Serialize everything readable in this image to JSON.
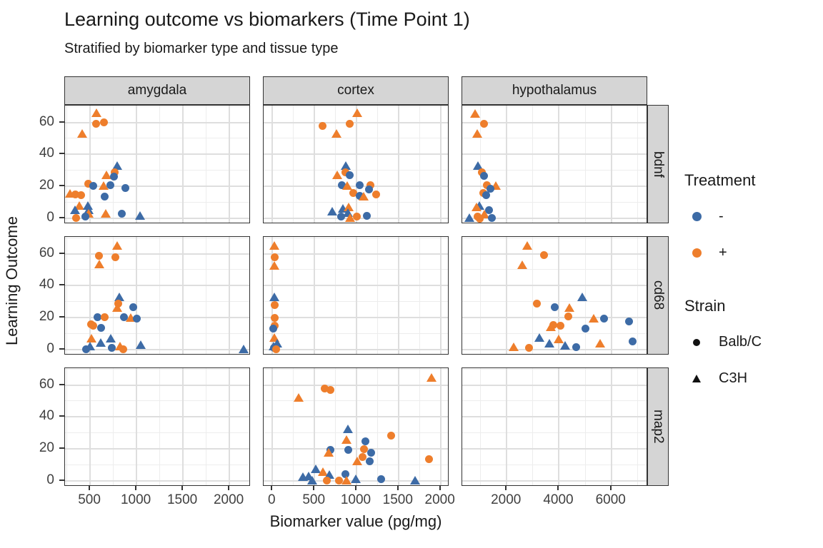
{
  "legend": {
    "treatment": {
      "title": "Treatment",
      "items": [
        {
          "label": "-"
        },
        {
          "label": "+"
        }
      ]
    },
    "strain": {
      "title": "Strain",
      "items": [
        {
          "label": "Balb/C"
        },
        {
          "label": "C3H"
        }
      ]
    }
  },
  "chart_data": {
    "type": "scatter",
    "title": "Learning outcome vs biomarkers (Time Point 1)",
    "subtitle": "Stratified by biomarker type and tissue type",
    "xlabel": "Biomarker value (pg/mg)",
    "ylabel": "Learning Outcome",
    "legend_position": "right",
    "grid": true,
    "style": {
      "treatment_minus_color": "#3D6BA6",
      "treatment_plus_color": "#EE7E2C",
      "strain_key_color": "#111111",
      "strip_bg": "#d5d5d5",
      "panel_border": "#333333",
      "grid_major": "#dedede",
      "grid_minor": "#ededed"
    },
    "facet_rows": [
      {
        "label": "bdnf"
      },
      {
        "label": "cd68"
      },
      {
        "label": "map2"
      }
    ],
    "facet_cols": [
      {
        "label": "amygdala",
        "xlim": [
          230,
          2230
        ],
        "xticks": [
          500,
          1000,
          1500,
          2000
        ]
      },
      {
        "label": "cortex",
        "xlim": [
          -105,
          2105
        ],
        "xticks": [
          0,
          500,
          1000,
          1500,
          2000
        ]
      },
      {
        "label": "hypothalamus",
        "xlim": [
          300,
          7400
        ],
        "xticks": [
          2000,
          4000,
          6000
        ]
      }
    ],
    "ylim": [
      -3.5,
      70.5
    ],
    "yticks": [
      0,
      20,
      40,
      60
    ],
    "point_format": [
      "biomarker_value",
      "learning_outcome",
      "treatment",
      "strain"
    ],
    "points": {
      "bdnf": {
        "amygdala": [
          [
            566,
            66,
            "+",
            "C3H"
          ],
          [
            561,
            59,
            "+",
            "Balb/C"
          ],
          [
            646,
            60,
            "+",
            "Balb/C"
          ],
          [
            414,
            53,
            "+",
            "C3H"
          ],
          [
            788,
            33,
            "-",
            "C3H"
          ],
          [
            766,
            29,
            "+",
            "Balb/C"
          ],
          [
            678,
            27,
            "+",
            "C3H"
          ],
          [
            754,
            26,
            "-",
            "Balb/C"
          ],
          [
            478,
            21.5,
            "+",
            "Balb/C"
          ],
          [
            532,
            20.5,
            "-",
            "Balb/C"
          ],
          [
            642,
            20.5,
            "+",
            "C3H"
          ],
          [
            718,
            21,
            "-",
            "Balb/C"
          ],
          [
            878,
            19,
            "-",
            "Balb/C"
          ],
          [
            280,
            15.5,
            "+",
            "C3H"
          ],
          [
            340,
            15,
            "+",
            "Balb/C"
          ],
          [
            400,
            14.5,
            "+",
            "Balb/C"
          ],
          [
            654,
            13.5,
            "-",
            "Balb/C"
          ],
          [
            386,
            8,
            "+",
            "C3H"
          ],
          [
            340,
            5,
            "-",
            "C3H"
          ],
          [
            476,
            8,
            "-",
            "C3H"
          ],
          [
            484,
            5,
            "-",
            "C3H"
          ],
          [
            487,
            3,
            "+",
            "C3H"
          ],
          [
            447,
            1,
            "-",
            "Balb/C"
          ],
          [
            348,
            0.5,
            "+",
            "Balb/C"
          ],
          [
            668,
            3,
            "+",
            "C3H"
          ],
          [
            838,
            3,
            "-",
            "Balb/C"
          ],
          [
            1034,
            1.5,
            "-",
            "C3H"
          ]
        ],
        "cortex": [
          [
            1009,
            66,
            "+",
            "C3H"
          ],
          [
            592,
            58,
            "+",
            "Balb/C"
          ],
          [
            922,
            59,
            "+",
            "Balb/C"
          ],
          [
            758,
            53,
            "+",
            "C3H"
          ],
          [
            869,
            33,
            "-",
            "C3H"
          ],
          [
            869,
            29,
            "+",
            "Balb/C"
          ],
          [
            772,
            27,
            "+",
            "C3H"
          ],
          [
            922,
            27,
            "-",
            "Balb/C"
          ],
          [
            824,
            21,
            "-",
            "Balb/C"
          ],
          [
            890,
            20.5,
            "+",
            "C3H"
          ],
          [
            1040,
            21,
            "-",
            "Balb/C"
          ],
          [
            1167,
            21,
            "+",
            "Balb/C"
          ],
          [
            1146,
            18,
            "-",
            "Balb/C"
          ],
          [
            961,
            16,
            "+",
            "Balb/C"
          ],
          [
            1035,
            14,
            "-",
            "Balb/C"
          ],
          [
            1088,
            13.5,
            "+",
            "C3H"
          ],
          [
            1230,
            15,
            "+",
            "Balb/C"
          ],
          [
            711,
            4.5,
            "-",
            "C3H"
          ],
          [
            837,
            6,
            "-",
            "C3H"
          ],
          [
            908,
            7,
            "+",
            "C3H"
          ],
          [
            895,
            3.5,
            "-",
            "C3H"
          ],
          [
            816,
            1,
            "-",
            "Balb/C"
          ],
          [
            922,
            0.5,
            "+",
            "C3H"
          ],
          [
            1001,
            1,
            "+",
            "Balb/C"
          ],
          [
            1119,
            1.5,
            "-",
            "Balb/C"
          ]
        ],
        "hypothalamus": [
          [
            795,
            65.5,
            "+",
            "C3H"
          ],
          [
            1140,
            59,
            "+",
            "Balb/C"
          ],
          [
            883,
            53,
            "+",
            "C3H"
          ],
          [
            909,
            33,
            "-",
            "C3H"
          ],
          [
            1053,
            29,
            "+",
            "Balb/C"
          ],
          [
            1140,
            26.5,
            "-",
            "Balb/C"
          ],
          [
            1245,
            21,
            "+",
            "Balb/C"
          ],
          [
            1570,
            20.5,
            "+",
            "C3H"
          ],
          [
            1381,
            18.5,
            "-",
            "Balb/C"
          ],
          [
            1097,
            16,
            "+",
            "Balb/C"
          ],
          [
            1209,
            14.5,
            "-",
            "Balb/C"
          ],
          [
            968,
            8,
            "-",
            "C3H"
          ],
          [
            839,
            7,
            "+",
            "C3H"
          ],
          [
            1311,
            5,
            "-",
            "Balb/C"
          ],
          [
            1140,
            2.5,
            "+",
            "C3H"
          ],
          [
            883,
            1,
            "+",
            "Balb/C"
          ],
          [
            581,
            0.5,
            "-",
            "C3H"
          ],
          [
            1441,
            0.5,
            "-",
            "Balb/C"
          ],
          [
            968,
            0,
            "+",
            "Balb/C"
          ]
        ]
      },
      "cd68": {
        "amygdala": [
          [
            788,
            65,
            "+",
            "C3H"
          ],
          [
            594,
            58.5,
            "+",
            "Balb/C"
          ],
          [
            772,
            58,
            "+",
            "Balb/C"
          ],
          [
            602,
            53.5,
            "+",
            "C3H"
          ],
          [
            812,
            33,
            "-",
            "C3H"
          ],
          [
            800,
            29,
            "+",
            "Balb/C"
          ],
          [
            795,
            26,
            "+",
            "C3H"
          ],
          [
            961,
            26.5,
            "-",
            "Balb/C"
          ],
          [
            580,
            20.5,
            "-",
            "Balb/C"
          ],
          [
            654,
            20.5,
            "+",
            "Balb/C"
          ],
          [
            868,
            20.5,
            "-",
            "Balb/C"
          ],
          [
            940,
            20,
            "+",
            "C3H"
          ],
          [
            1002,
            19.5,
            "-",
            "Balb/C"
          ],
          [
            508,
            16,
            "+",
            "Balb/C"
          ],
          [
            530,
            15,
            "+",
            "Balb/C"
          ],
          [
            620,
            13.5,
            "-",
            "Balb/C"
          ],
          [
            518,
            7,
            "+",
            "C3H"
          ],
          [
            615,
            4.5,
            "-",
            "C3H"
          ],
          [
            726,
            7,
            "-",
            "C3H"
          ],
          [
            455,
            0.5,
            "-",
            "Balb/C"
          ],
          [
            500,
            2,
            "-",
            "C3H"
          ],
          [
            732,
            1,
            "-",
            "Balb/C"
          ],
          [
            820,
            2,
            "+",
            "C3H"
          ],
          [
            860,
            0.5,
            "+",
            "Balb/C"
          ],
          [
            1046,
            3,
            "-",
            "C3H"
          ],
          [
            2150,
            0.5,
            "-",
            "C3H"
          ]
        ],
        "cortex": [
          [
            26,
            65,
            "+",
            "C3H"
          ],
          [
            26,
            58,
            "+",
            "Balb/C"
          ],
          [
            26,
            52.5,
            "+",
            "C3H"
          ],
          [
            26,
            33,
            "-",
            "C3H"
          ],
          [
            26,
            28,
            "+",
            "Balb/C"
          ],
          [
            26,
            20,
            "+",
            "Balb/C"
          ],
          [
            26,
            15,
            "+",
            "Balb/C"
          ],
          [
            13,
            13,
            "-",
            "Balb/C"
          ],
          [
            26,
            7.5,
            "+",
            "C3H"
          ],
          [
            53,
            4,
            "-",
            "C3H"
          ],
          [
            10,
            2,
            "-",
            "C3H"
          ],
          [
            20,
            1,
            "-",
            "Balb/C"
          ],
          [
            40,
            0.5,
            "+",
            "Balb/C"
          ]
        ],
        "hypothalamus": [
          [
            2774,
            65,
            "+",
            "C3H"
          ],
          [
            3419,
            59,
            "+",
            "Balb/C"
          ],
          [
            2586,
            53,
            "+",
            "C3H"
          ],
          [
            4897,
            33,
            "-",
            "C3H"
          ],
          [
            3161,
            29,
            "+",
            "Balb/C"
          ],
          [
            3824,
            26.5,
            "-",
            "Balb/C"
          ],
          [
            4391,
            26,
            "+",
            "C3H"
          ],
          [
            4348,
            21,
            "+",
            "Balb/C"
          ],
          [
            5336,
            19.5,
            "+",
            "C3H"
          ],
          [
            5715,
            19.5,
            "-",
            "Balb/C"
          ],
          [
            6670,
            17.5,
            "-",
            "Balb/C"
          ],
          [
            3680,
            14,
            "+",
            "C3H"
          ],
          [
            3770,
            15.5,
            "+",
            "Balb/C"
          ],
          [
            4060,
            15,
            "+",
            "Balb/C"
          ],
          [
            5011,
            13,
            "-",
            "Balb/C"
          ],
          [
            3246,
            7.5,
            "-",
            "C3H"
          ],
          [
            3633,
            4,
            "-",
            "C3H"
          ],
          [
            3995,
            6.5,
            "+",
            "C3H"
          ],
          [
            6817,
            5,
            "-",
            "Balb/C"
          ],
          [
            5568,
            4,
            "+",
            "C3H"
          ],
          [
            2258,
            1.5,
            "+",
            "C3H"
          ],
          [
            2851,
            1,
            "+",
            "Balb/C"
          ],
          [
            4237,
            2.5,
            "-",
            "C3H"
          ],
          [
            4657,
            1.5,
            "-",
            "Balb/C"
          ]
        ]
      },
      "map2": {
        "amygdala": [],
        "cortex": [
          [
            1896,
            64.5,
            "+",
            "C3H"
          ],
          [
            619,
            58,
            "+",
            "Balb/C"
          ],
          [
            693,
            57,
            "+",
            "Balb/C"
          ],
          [
            308,
            52,
            "+",
            "C3H"
          ],
          [
            895,
            32.5,
            "-",
            "C3H"
          ],
          [
            1409,
            28.5,
            "+",
            "Balb/C"
          ],
          [
            882,
            25.5,
            "+",
            "C3H"
          ],
          [
            1106,
            25,
            "-",
            "Balb/C"
          ],
          [
            693,
            19.5,
            "-",
            "Balb/C"
          ],
          [
            672,
            17.5,
            "+",
            "C3H"
          ],
          [
            903,
            19.5,
            "-",
            "Balb/C"
          ],
          [
            1088,
            20,
            "+",
            "Balb/C"
          ],
          [
            1074,
            15,
            "+",
            "Balb/C"
          ],
          [
            1172,
            17.5,
            "-",
            "Balb/C"
          ],
          [
            1009,
            12.5,
            "+",
            "C3H"
          ],
          [
            1153,
            12.5,
            "-",
            "Balb/C"
          ],
          [
            1862,
            13.5,
            "+",
            "Balb/C"
          ],
          [
            363,
            2.5,
            "-",
            "C3H"
          ],
          [
            434,
            3,
            "-",
            "C3H"
          ],
          [
            513,
            7.5,
            "-",
            "C3H"
          ],
          [
            600,
            5.5,
            "+",
            "C3H"
          ],
          [
            474,
            0.5,
            "-",
            "C3H"
          ],
          [
            679,
            4,
            "-",
            "C3H"
          ],
          [
            645,
            0.5,
            "+",
            "Balb/C"
          ],
          [
            790,
            0.5,
            "+",
            "Balb/C"
          ],
          [
            869,
            4.5,
            "-",
            "Balb/C"
          ],
          [
            877,
            0.5,
            "+",
            "C3H"
          ],
          [
            995,
            1,
            "-",
            "C3H"
          ],
          [
            1290,
            1,
            "-",
            "Balb/C"
          ],
          [
            1698,
            0.5,
            "-",
            "C3H"
          ]
        ],
        "hypothalamus": []
      }
    }
  }
}
